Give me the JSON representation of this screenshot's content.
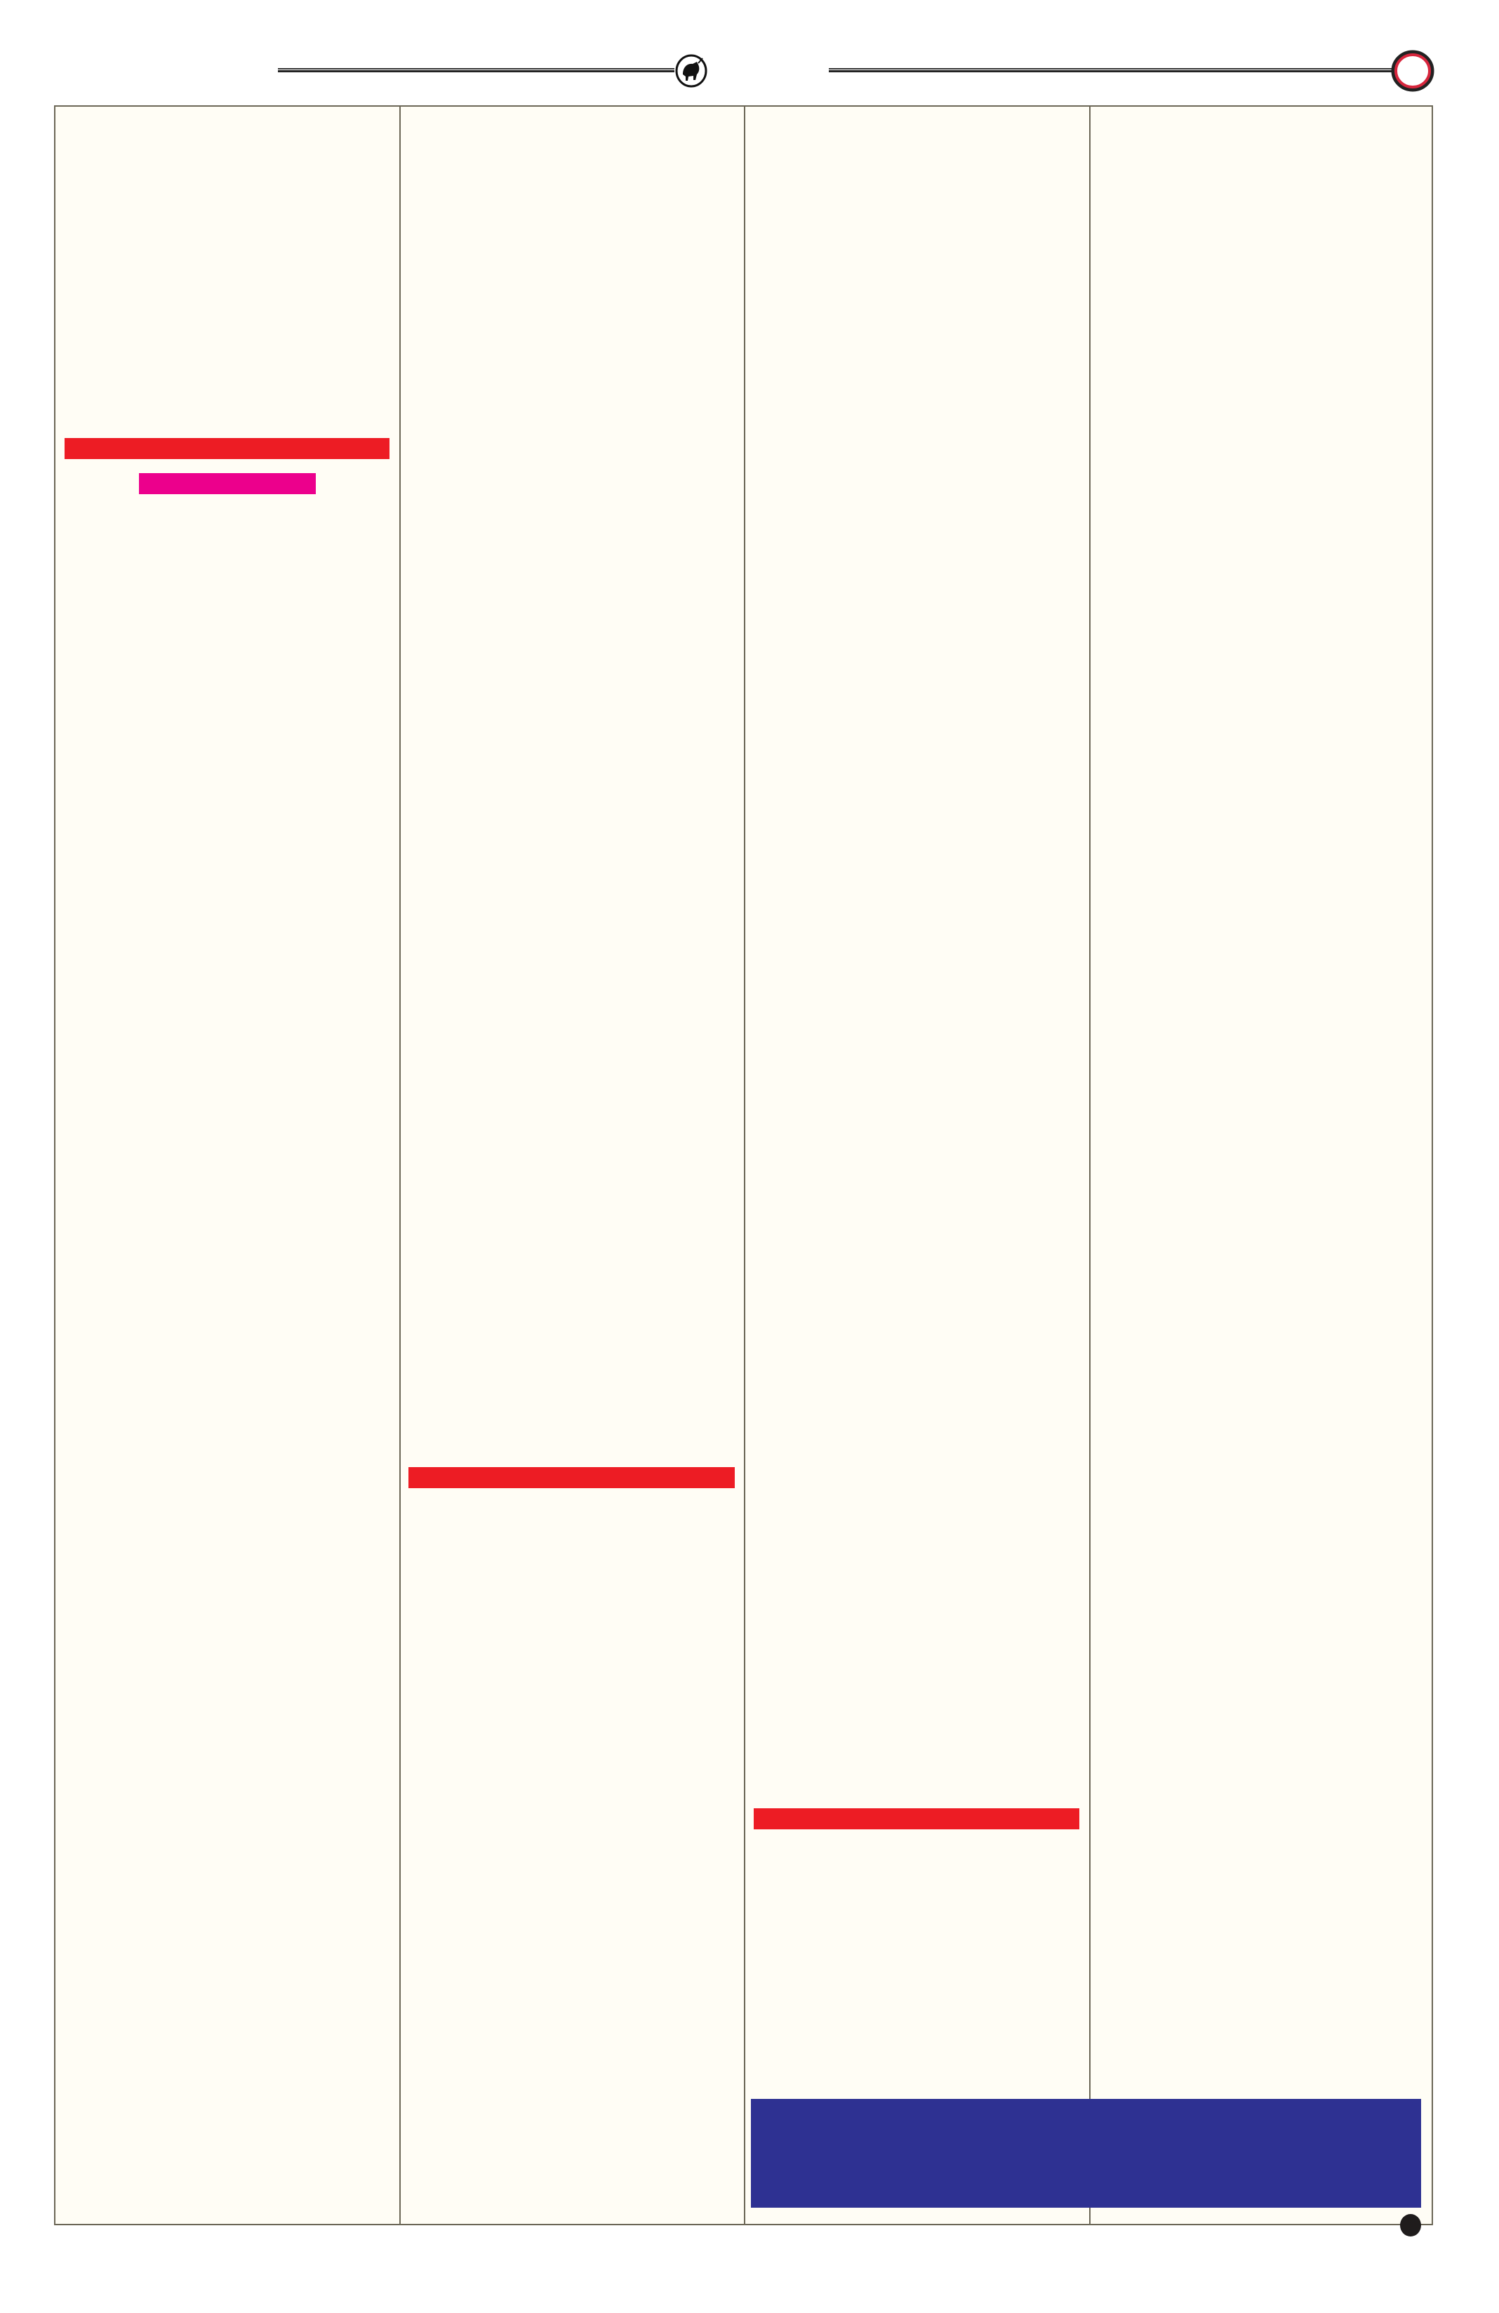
{
  "header": {
    "logo_icon": "bull-emblem-icon",
    "page_marker_icon": "red-ring-icon"
  },
  "colors": {
    "page_background": "#fffdf5",
    "rule": "#6b6656",
    "headline_bar": "#ed1c24",
    "subhead_bar": "#ec008c",
    "feature_box": "#2e3192",
    "ring": "#d7263d"
  },
  "footer": {
    "end_marker_icon": "black-dot-icon"
  }
}
